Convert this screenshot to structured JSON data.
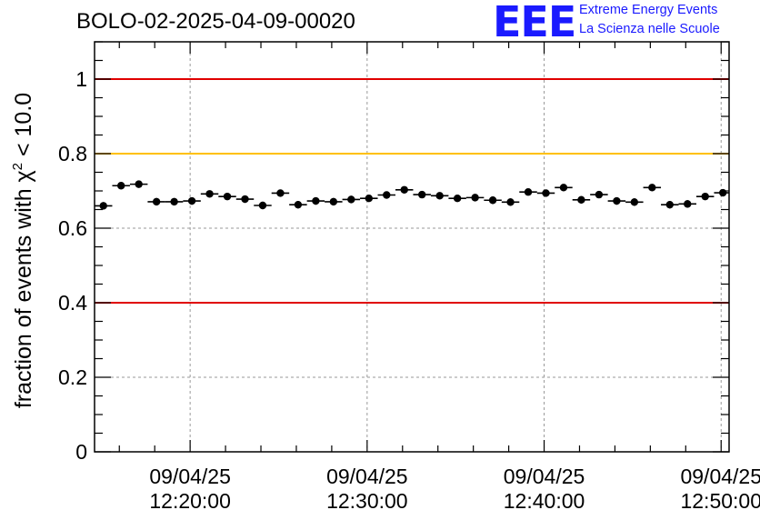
{
  "header": {
    "title": "BOLO-02-2025-04-09-00020",
    "logo_text": "EEE",
    "logo_line1": "Extreme Energy Events",
    "logo_line2": "La Scienza nelle Scuole"
  },
  "colors": {
    "threshold_red": "#e00000",
    "threshold_yellow": "#ffc000",
    "logo_blue": "#1a1aff",
    "marker": "#000000",
    "grid": "#999999"
  },
  "chart_data": {
    "type": "scatter",
    "title": "BOLO-02-2025-04-09-00020",
    "xlabel": "",
    "ylabel": "fraction of events with χ² < 10.0",
    "ylabel_prefix": "fraction of events with χ",
    "ylabel_sup": "2",
    "ylabel_suffix": " < 10.0",
    "ylim": [
      0,
      1.1
    ],
    "xlim_minutes": [
      14.6,
      50.45
    ],
    "yticks": [
      0,
      0.2,
      0.4,
      0.6,
      0.8,
      1
    ],
    "ytick_labels": [
      "0",
      "0.2",
      "0.4",
      "0.6",
      "0.8",
      "1"
    ],
    "xticks_minutes": [
      20,
      30,
      40,
      50
    ],
    "xtick_labels": [
      {
        "date": "09/04/25",
        "time": "12:20:00"
      },
      {
        "date": "09/04/25",
        "time": "12:30:00"
      },
      {
        "date": "09/04/25",
        "time": "12:40:00"
      },
      {
        "date": "09/04/25",
        "time": "12:50:00"
      }
    ],
    "grid": true,
    "bin_width_minutes": 1.0,
    "x_minutes": [
      15.1,
      16.1,
      17.1,
      18.1,
      19.1,
      20.1,
      21.1,
      22.1,
      23.1,
      24.1,
      25.1,
      26.1,
      27.1,
      28.1,
      29.1,
      30.1,
      31.1,
      32.1,
      33.1,
      34.1,
      35.1,
      36.1,
      37.1,
      38.1,
      39.1,
      40.1,
      41.1,
      42.1,
      43.1,
      44.1,
      45.1,
      46.1,
      47.1,
      48.1,
      49.1,
      50.1
    ],
    "values": [
      0.66,
      0.714,
      0.718,
      0.671,
      0.671,
      0.673,
      0.692,
      0.685,
      0.678,
      0.661,
      0.694,
      0.663,
      0.673,
      0.671,
      0.677,
      0.68,
      0.689,
      0.703,
      0.69,
      0.687,
      0.68,
      0.682,
      0.675,
      0.67,
      0.697,
      0.694,
      0.709,
      0.676,
      0.69,
      0.673,
      0.67,
      0.709,
      0.663,
      0.665,
      0.685,
      0.695
    ],
    "errors": [
      0.01,
      0.009,
      0.009,
      0.01,
      0.01,
      0.01,
      0.009,
      0.009,
      0.01,
      0.01,
      0.009,
      0.01,
      0.01,
      0.01,
      0.01,
      0.009,
      0.009,
      0.009,
      0.009,
      0.009,
      0.009,
      0.009,
      0.01,
      0.01,
      0.009,
      0.009,
      0.009,
      0.01,
      0.009,
      0.01,
      0.01,
      0.009,
      0.01,
      0.01,
      0.009,
      0.009
    ],
    "reference_lines": [
      {
        "y": 1.0,
        "color": "#e00000"
      },
      {
        "y": 0.8,
        "color": "#ffc000"
      },
      {
        "y": 0.4,
        "color": "#e00000"
      }
    ]
  }
}
